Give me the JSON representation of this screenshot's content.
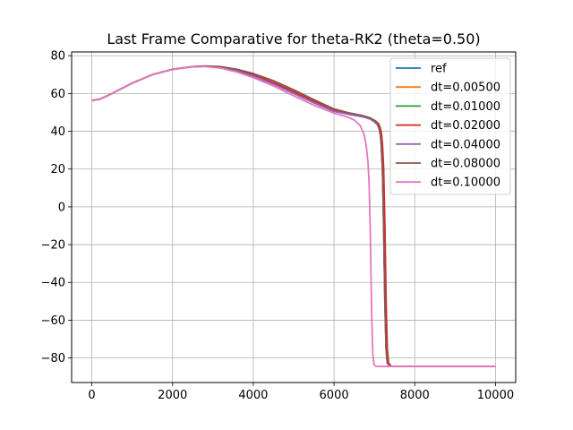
{
  "chart_data": {
    "type": "line",
    "title": "Last Frame Comparative for theta-RK2 (theta=0.50)",
    "xlabel": "",
    "ylabel": "",
    "xlim": [
      -500,
      10500
    ],
    "ylim": [
      -93,
      82
    ],
    "xticks": [
      0,
      2000,
      4000,
      6000,
      8000,
      10000
    ],
    "xtick_labels": [
      "0",
      "2000",
      "4000",
      "6000",
      "8000",
      "10000"
    ],
    "yticks": [
      -80,
      -60,
      -40,
      -20,
      0,
      20,
      40,
      60,
      80
    ],
    "ytick_labels": [
      "−80",
      "−60",
      "−40",
      "−20",
      "0",
      "20",
      "40",
      "60",
      "80"
    ],
    "grid": true,
    "legend_position": "top-right",
    "series": [
      {
        "name": "ref",
        "color": "#1f77b4",
        "shift": 0,
        "x": [
          0,
          200,
          500,
          1000,
          1500,
          2000,
          2500,
          2800,
          3200,
          3600,
          4000,
          4500,
          5000,
          5500,
          6000,
          6400,
          6700,
          6900,
          7000,
          7080,
          7120,
          7150,
          7170,
          7200,
          7230,
          7260,
          7290,
          7320,
          7380,
          7450,
          8000,
          9000,
          10000
        ],
        "y": [
          56.3,
          57,
          60,
          65.5,
          70,
          72.8,
          74.2,
          74.4,
          73.8,
          72.2,
          69.8,
          65.8,
          61,
          56,
          51.3,
          49.3,
          48.1,
          46.8,
          45.5,
          43.8,
          41.5,
          38,
          33,
          20,
          -10,
          -50,
          -75,
          -82.5,
          -84.3,
          -84.5,
          -84.5,
          -84.5,
          -84.5
        ]
      },
      {
        "name": "dt=0.00500",
        "color": "#ff7f0e",
        "shift": 10,
        "x": [
          0,
          200,
          500,
          1000,
          1500,
          2000,
          2500,
          2800,
          3200,
          3600,
          4000,
          4500,
          5000,
          5500,
          6000,
          6400,
          6700,
          6900,
          7000,
          7080,
          7120,
          7150,
          7170,
          7200,
          7230,
          7260,
          7290,
          7320,
          7380,
          7450,
          8000,
          9000,
          10000
        ],
        "y": [
          56.3,
          57,
          60,
          65.5,
          70,
          72.8,
          74.2,
          74.4,
          73.8,
          72.2,
          69.8,
          65.8,
          61,
          56,
          51.3,
          49.3,
          48.1,
          46.8,
          45.5,
          43.8,
          41.5,
          38,
          33,
          20,
          -10,
          -50,
          -75,
          -82.5,
          -84.3,
          -84.5,
          -84.5,
          -84.5,
          -84.5
        ]
      },
      {
        "name": "dt=0.01000",
        "color": "#2ca02c",
        "shift": 15,
        "x": [
          0,
          200,
          500,
          1000,
          1500,
          2000,
          2500,
          2800,
          3200,
          3600,
          4000,
          4500,
          5000,
          5500,
          6000,
          6400,
          6700,
          6900,
          7000,
          7080,
          7120,
          7150,
          7170,
          7200,
          7230,
          7260,
          7290,
          7320,
          7380,
          7450,
          8000,
          9000,
          10000
        ],
        "y": [
          56.3,
          57,
          60,
          65.5,
          70,
          72.8,
          74.2,
          74.4,
          73.8,
          72.2,
          69.8,
          65.8,
          61,
          56,
          51.3,
          49.3,
          48.1,
          46.8,
          45.5,
          43.8,
          41.5,
          38,
          33,
          20,
          -10,
          -50,
          -75,
          -82.5,
          -84.3,
          -84.5,
          -84.5,
          -84.5,
          -84.5
        ]
      },
      {
        "name": "dt=0.02000",
        "color": "#d62728",
        "shift": 30,
        "x": [
          0,
          200,
          500,
          1000,
          1500,
          2000,
          2500,
          2800,
          3200,
          3600,
          4000,
          4500,
          5000,
          5500,
          6000,
          6400,
          6700,
          6900,
          7000,
          7080,
          7120,
          7150,
          7170,
          7200,
          7230,
          7260,
          7290,
          7320,
          7380,
          7450,
          8000,
          9000,
          10000
        ],
        "y": [
          56.3,
          57,
          60,
          65.5,
          70,
          72.8,
          74.2,
          74.4,
          73.8,
          72.2,
          69.8,
          65.8,
          61,
          56,
          51.3,
          49.3,
          48.1,
          46.8,
          45.5,
          43.8,
          41.5,
          38,
          33,
          20,
          -10,
          -50,
          -75,
          -82.5,
          -84.3,
          -84.5,
          -84.5,
          -84.5,
          -84.5
        ]
      },
      {
        "name": "dt=0.04000",
        "color": "#9467bd",
        "shift": 0,
        "x": [
          0,
          200,
          500,
          1000,
          1500,
          2000,
          2500,
          2800,
          3200,
          3600,
          4000,
          4500,
          5000,
          5500,
          6000,
          6400,
          6700,
          6900,
          7000,
          7080,
          7120,
          7150,
          7170,
          7200,
          7230,
          7260,
          7290,
          7320,
          7380,
          7450,
          8000,
          9000,
          10000
        ],
        "y": [
          56.3,
          57,
          60,
          65.5,
          70,
          72.8,
          74.2,
          74.4,
          73.6,
          71.8,
          69.2,
          65,
          60,
          55,
          50.5,
          48.8,
          47.7,
          46.4,
          45,
          43.3,
          41,
          37.5,
          32.5,
          19,
          -12,
          -52,
          -76,
          -82.8,
          -84.3,
          -84.5,
          -84.5,
          -84.5,
          -84.5
        ]
      },
      {
        "name": "dt=0.08000",
        "color": "#8c564b",
        "shift": 0,
        "x": [
          0,
          200,
          500,
          1000,
          1500,
          2000,
          2500,
          2800,
          3200,
          3600,
          4000,
          4500,
          5000,
          5500,
          6000,
          6400,
          6700,
          6900,
          7000,
          7080,
          7120,
          7150,
          7170,
          7200,
          7230,
          7260,
          7290,
          7320,
          7380,
          7450,
          8000,
          9000,
          10000
        ],
        "y": [
          56.3,
          57,
          60,
          65.5,
          70,
          72.8,
          74.3,
          74.6,
          74.2,
          72.8,
          70.6,
          66.8,
          62,
          56.8,
          51.8,
          49.6,
          48.4,
          47.1,
          45.7,
          44,
          41.7,
          38.2,
          33.2,
          20,
          -10,
          -50,
          -75,
          -82.5,
          -84.3,
          -84.5,
          -84.5,
          -84.5,
          -84.5
        ]
      },
      {
        "name": "dt=0.10000",
        "color": "#e377c2",
        "shift": 0,
        "x": [
          0,
          200,
          500,
          1000,
          1500,
          2000,
          2500,
          2800,
          3200,
          3600,
          4000,
          4500,
          5000,
          5500,
          6000,
          6300,
          6500,
          6650,
          6750,
          6800,
          6840,
          6870,
          6900,
          6930,
          6960,
          6990,
          7030,
          7100,
          7200,
          8000,
          9000,
          10000
        ],
        "y": [
          56.3,
          57,
          60,
          65.5,
          70,
          72.8,
          74.2,
          74.3,
          73.4,
          71.3,
          68.4,
          64,
          58.8,
          53.8,
          49.6,
          47.8,
          46,
          43,
          38,
          32,
          24,
          12,
          -15,
          -55,
          -78,
          -83.5,
          -84.3,
          -84.5,
          -84.5,
          -84.5,
          -84.5,
          -84.5
        ]
      }
    ]
  }
}
